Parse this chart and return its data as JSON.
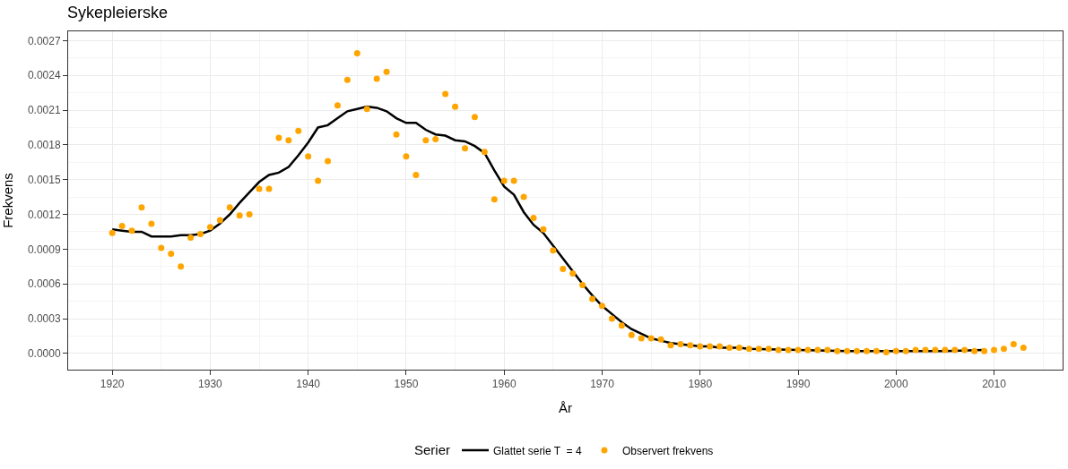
{
  "chart_data": {
    "type": "line",
    "title": "Sykepleierske",
    "xlabel": "År",
    "ylabel": "Frekvens",
    "legend_title": "Serier",
    "xlim": [
      1915.5,
      2017
    ],
    "xticks": [
      1920,
      1930,
      1940,
      1950,
      1960,
      1970,
      1980,
      1990,
      2000,
      2010
    ],
    "ylim": [
      -0.00014,
      0.00278
    ],
    "yticks": [
      {
        "value": 0,
        "label": "0.0000"
      },
      {
        "value": 0.0003,
        "label": "0.0003"
      },
      {
        "value": 0.0006,
        "label": "0.0006"
      },
      {
        "value": 0.0009,
        "label": "0.0009"
      },
      {
        "value": 0.0012,
        "label": "0.0012"
      },
      {
        "value": 0.0015,
        "label": "0.0015"
      },
      {
        "value": 0.0018,
        "label": "0.0018"
      },
      {
        "value": 0.0021,
        "label": "0.0021"
      },
      {
        "value": 0.0024,
        "label": "0.0024"
      },
      {
        "value": 0.0027,
        "label": "0.0027"
      }
    ],
    "grid": true,
    "legend": "bottom",
    "series": [
      {
        "name": "Glattet serie T  = 4",
        "color": "#000000",
        "line_style": "solid",
        "x": [
          1920,
          1921,
          1922,
          1923,
          1924,
          1925,
          1926,
          1927,
          1928,
          1929,
          1930,
          1931,
          1932,
          1933,
          1934,
          1935,
          1936,
          1937,
          1938,
          1939,
          1940,
          1941,
          1942,
          1943,
          1944,
          1945,
          1946,
          1947,
          1948,
          1949,
          1950,
          1951,
          1952,
          1953,
          1954,
          1955,
          1956,
          1957,
          1958,
          1959,
          1960,
          1961,
          1962,
          1963,
          1964,
          1965,
          1966,
          1967,
          1968,
          1969,
          1970,
          1971,
          1972,
          1973,
          1974,
          1975,
          1976,
          1977,
          1978,
          1979,
          1980,
          1981,
          1982,
          1983,
          1984,
          1985,
          1990,
          1995,
          1999,
          2005,
          2009
        ],
        "values": [
          0.00107,
          0.00106,
          0.00105,
          0.00105,
          0.00101,
          0.00101,
          0.00101,
          0.00102,
          0.00102,
          0.00103,
          0.00106,
          0.00112,
          0.0012,
          0.0013,
          0.00139,
          0.00148,
          0.00154,
          0.00156,
          0.00161,
          0.00171,
          0.00182,
          0.00195,
          0.00197,
          0.00203,
          0.00209,
          0.00211,
          0.00213,
          0.00212,
          0.00209,
          0.00203,
          0.00199,
          0.00199,
          0.00193,
          0.00189,
          0.00188,
          0.00184,
          0.00183,
          0.00179,
          0.00173,
          0.00158,
          0.00144,
          0.00137,
          0.00122,
          0.00111,
          0.00104,
          0.00093,
          0.00082,
          0.00071,
          0.0006,
          0.0005,
          0.00041,
          0.00034,
          0.00027,
          0.00021,
          0.00017,
          0.00013,
          0.00011,
          9e-05,
          8e-05,
          7e-05,
          6e-05,
          6e-05,
          5e-05,
          5e-05,
          5e-05,
          4e-05,
          3e-05,
          2e-05,
          2e-05,
          2e-05,
          3e-05
        ]
      },
      {
        "name": "Observert frekvens",
        "type": "scatter",
        "marker": "circle",
        "color": "#ffa500",
        "x": [
          1920,
          1921,
          1922,
          1923,
          1924,
          1925,
          1926,
          1927,
          1928,
          1929,
          1930,
          1931,
          1932,
          1933,
          1934,
          1935,
          1936,
          1937,
          1938,
          1939,
          1940,
          1941,
          1942,
          1943,
          1944,
          1945,
          1946,
          1947,
          1948,
          1949,
          1950,
          1951,
          1952,
          1953,
          1954,
          1955,
          1956,
          1957,
          1958,
          1959,
          1960,
          1961,
          1962,
          1963,
          1964,
          1965,
          1966,
          1967,
          1968,
          1969,
          1970,
          1971,
          1972,
          1973,
          1974,
          1975,
          1976,
          1977,
          1978,
          1979,
          1980,
          1981,
          1982,
          1983,
          1984,
          1985,
          1986,
          1987,
          1988,
          1989,
          1990,
          1991,
          1992,
          1993,
          1994,
          1995,
          1996,
          1997,
          1998,
          1999,
          2000,
          2001,
          2002,
          2003,
          2004,
          2005,
          2006,
          2007,
          2008,
          2009,
          2010,
          2011,
          2012,
          2013
        ],
        "values": [
          0.00104,
          0.0011,
          0.00106,
          0.00126,
          0.00112,
          0.00091,
          0.00086,
          0.00075,
          0.001,
          0.00103,
          0.00109,
          0.00115,
          0.00126,
          0.00119,
          0.0012,
          0.00142,
          0.00142,
          0.00186,
          0.00184,
          0.00192,
          0.0017,
          0.00149,
          0.00166,
          0.00214,
          0.00236,
          0.00259,
          0.00211,
          0.00237,
          0.00243,
          0.00189,
          0.0017,
          0.00154,
          0.00184,
          0.00185,
          0.00224,
          0.00213,
          0.00177,
          0.00204,
          0.00174,
          0.00133,
          0.00149,
          0.00149,
          0.00135,
          0.00117,
          0.00107,
          0.00089,
          0.00073,
          0.00069,
          0.00059,
          0.00047,
          0.00041,
          0.0003,
          0.00024,
          0.00016,
          0.00013,
          0.00013,
          0.00012,
          7e-05,
          8e-05,
          7e-05,
          6e-05,
          6e-05,
          6e-05,
          5e-05,
          5e-05,
          4e-05,
          4e-05,
          4e-05,
          3e-05,
          3e-05,
          3e-05,
          3e-05,
          3e-05,
          3e-05,
          2e-05,
          2e-05,
          2e-05,
          2e-05,
          2e-05,
          1e-05,
          2e-05,
          2e-05,
          3e-05,
          3e-05,
          3e-05,
          3e-05,
          3e-05,
          3e-05,
          2e-05,
          2e-05,
          3e-05,
          4e-05,
          8e-05,
          5e-05
        ]
      }
    ]
  }
}
